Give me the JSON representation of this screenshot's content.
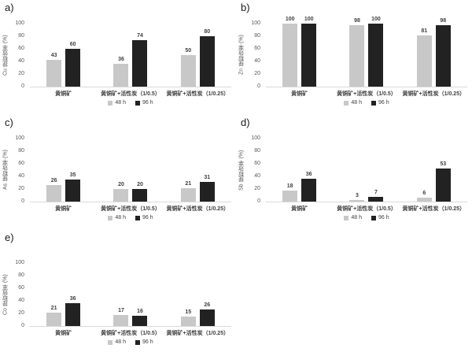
{
  "figure": {
    "panel_letters": [
      "a)",
      "b)",
      "c)",
      "d)",
      "e)"
    ]
  },
  "legend": {
    "items": [
      {
        "label": "48 h",
        "color": "#c8c8c8"
      },
      {
        "label": "96 h",
        "color": "#222222"
      }
    ],
    "position": "bottom-center"
  },
  "colors": {
    "bar_48h": "#c8c8c8",
    "bar_96h": "#222222",
    "baseline": "#d9d9d9",
    "tick_text": "#595959",
    "label_text": "#404040"
  },
  "chart_data": [
    {
      "type": "bar",
      "panel": "a)",
      "element": "Cu",
      "ylabel": "Cu 提取效率 (%)",
      "xlabel": "",
      "ylim": [
        0,
        100
      ],
      "yticks": [
        0,
        20,
        40,
        60,
        80,
        100
      ],
      "grid": false,
      "legend_position": "bottom",
      "categories": [
        "黄铜矿",
        "黄铜矿+活性炭（1/0.5）",
        "黄铜矿+活性炭（1/0.25）"
      ],
      "series": [
        {
          "name": "48 h",
          "color": "#c8c8c8",
          "values": [
            43,
            36,
            50
          ]
        },
        {
          "name": "96 h",
          "color": "#222222",
          "values": [
            60,
            74,
            80
          ]
        }
      ]
    },
    {
      "type": "bar",
      "panel": "b)",
      "element": "Zn",
      "ylabel": "Zn 提取效率 (%)",
      "xlabel": "",
      "ylim": [
        0,
        100
      ],
      "yticks": [
        0,
        20,
        40,
        60,
        80,
        100
      ],
      "grid": false,
      "legend_position": "bottom",
      "categories": [
        "黄铜矿",
        "黄铜矿+活性炭（1/0.5）",
        "黄铜矿+活性炭（1/0.25）"
      ],
      "series": [
        {
          "name": "48 h",
          "color": "#c8c8c8",
          "values": [
            100,
            98,
            81
          ]
        },
        {
          "name": "96 h",
          "color": "#222222",
          "values": [
            100,
            100,
            98
          ]
        }
      ]
    },
    {
      "type": "bar",
      "panel": "c)",
      "element": "As",
      "ylabel": "As 提取效率 (%)",
      "xlabel": "",
      "ylim": [
        0,
        100
      ],
      "yticks": [
        0,
        20,
        40,
        60,
        80,
        100
      ],
      "grid": false,
      "legend_position": "bottom",
      "categories": [
        "黄铜矿",
        "黄铜矿+活性炭（1/0.5）",
        "黄铜矿+活性炭（1/0.25）"
      ],
      "series": [
        {
          "name": "48 h",
          "color": "#c8c8c8",
          "values": [
            26,
            20,
            21
          ]
        },
        {
          "name": "96 h",
          "color": "#222222",
          "values": [
            35,
            20,
            31
          ]
        }
      ]
    },
    {
      "type": "bar",
      "panel": "d)",
      "element": "Sb",
      "ylabel": "Sb 提取效率 (%)",
      "xlabel": "",
      "ylim": [
        0,
        100
      ],
      "yticks": [
        0,
        20,
        40,
        60,
        80,
        100
      ],
      "grid": false,
      "legend_position": "bottom",
      "categories": [
        "黄铜矿",
        "黄铜矿+活性炭（1/0.5）",
        "黄铜矿+活性炭（1/0.25）"
      ],
      "series": [
        {
          "name": "48 h",
          "color": "#c8c8c8",
          "values": [
            18,
            3,
            6
          ]
        },
        {
          "name": "96 h",
          "color": "#222222",
          "values": [
            36,
            7,
            53
          ]
        }
      ]
    },
    {
      "type": "bar",
      "panel": "e)",
      "element": "Co",
      "ylabel": "Co 提取效率 (%)",
      "xlabel": "",
      "ylim": [
        0,
        100
      ],
      "yticks": [
        0,
        20,
        40,
        60,
        80,
        100
      ],
      "grid": false,
      "legend_position": "bottom",
      "categories": [
        "黄铜矿",
        "黄铜矿+活性炭（1/0.5）",
        "黄铜矿+活性炭（1/0.25）"
      ],
      "series": [
        {
          "name": "48 h",
          "color": "#c8c8c8",
          "values": [
            21,
            17,
            15
          ]
        },
        {
          "name": "96 h",
          "color": "#222222",
          "values": [
            36,
            16,
            26
          ]
        }
      ]
    }
  ]
}
